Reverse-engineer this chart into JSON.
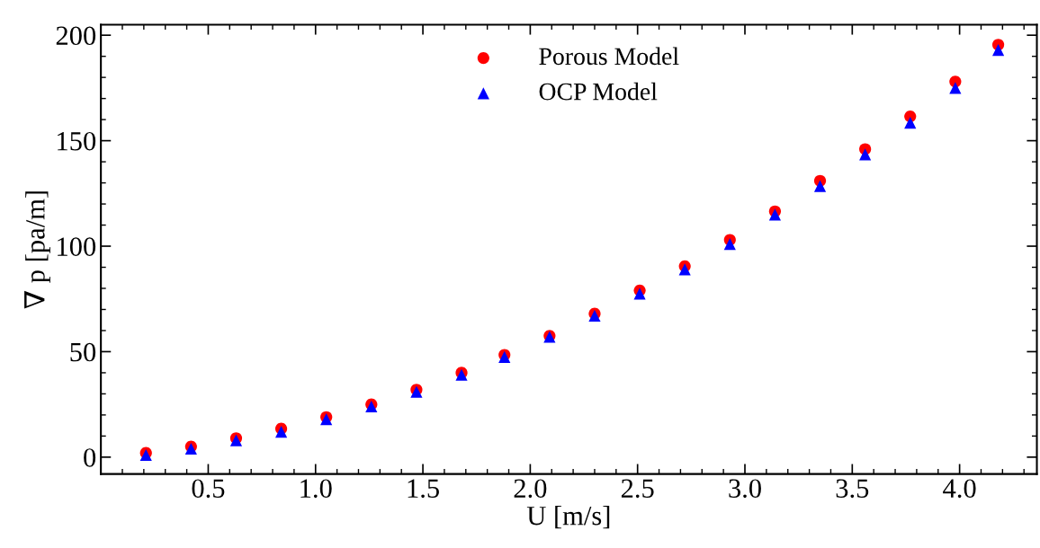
{
  "chart_data": {
    "type": "scatter",
    "xlabel": "U [m/s]",
    "ylabel": "∇ p [pa/m]",
    "x": [
      0.21,
      0.42,
      0.63,
      0.84,
      1.05,
      1.26,
      1.47,
      1.68,
      1.88,
      2.09,
      2.3,
      2.51,
      2.72,
      2.93,
      3.14,
      3.35,
      3.56,
      3.77,
      3.98,
      4.18
    ],
    "series": [
      {
        "name": "Porous Model",
        "color": "#ff0000",
        "marker": "circle",
        "values": [
          2,
          5,
          9,
          13.5,
          19,
          25,
          32,
          40,
          48.5,
          57.5,
          68,
          79,
          90.5,
          103,
          116.5,
          131,
          146,
          161.5,
          178,
          195.5
        ]
      },
      {
        "name": "OCP Model",
        "color": "#0000ff",
        "marker": "triangle",
        "values": [
          1,
          4,
          8,
          12,
          18,
          24,
          31,
          39,
          47.5,
          57,
          67,
          77.5,
          89,
          101,
          115,
          128.5,
          143.5,
          158.5,
          175,
          193
        ]
      }
    ],
    "xlim": [
      0,
      4.36
    ],
    "xticks": [
      0.5,
      {
        "value": 1,
        "label": "1.0"
      },
      1.5,
      {
        "value": 2,
        "label": "2.0"
      },
      2.5,
      {
        "value": 3,
        "label": "3.0"
      },
      3.5,
      {
        "value": 4,
        "label": "4.0"
      }
    ],
    "ylim": [
      -8,
      205
    ],
    "yticks": [
      0,
      50,
      100,
      150,
      200
    ],
    "grid": false,
    "legend": "top"
  }
}
